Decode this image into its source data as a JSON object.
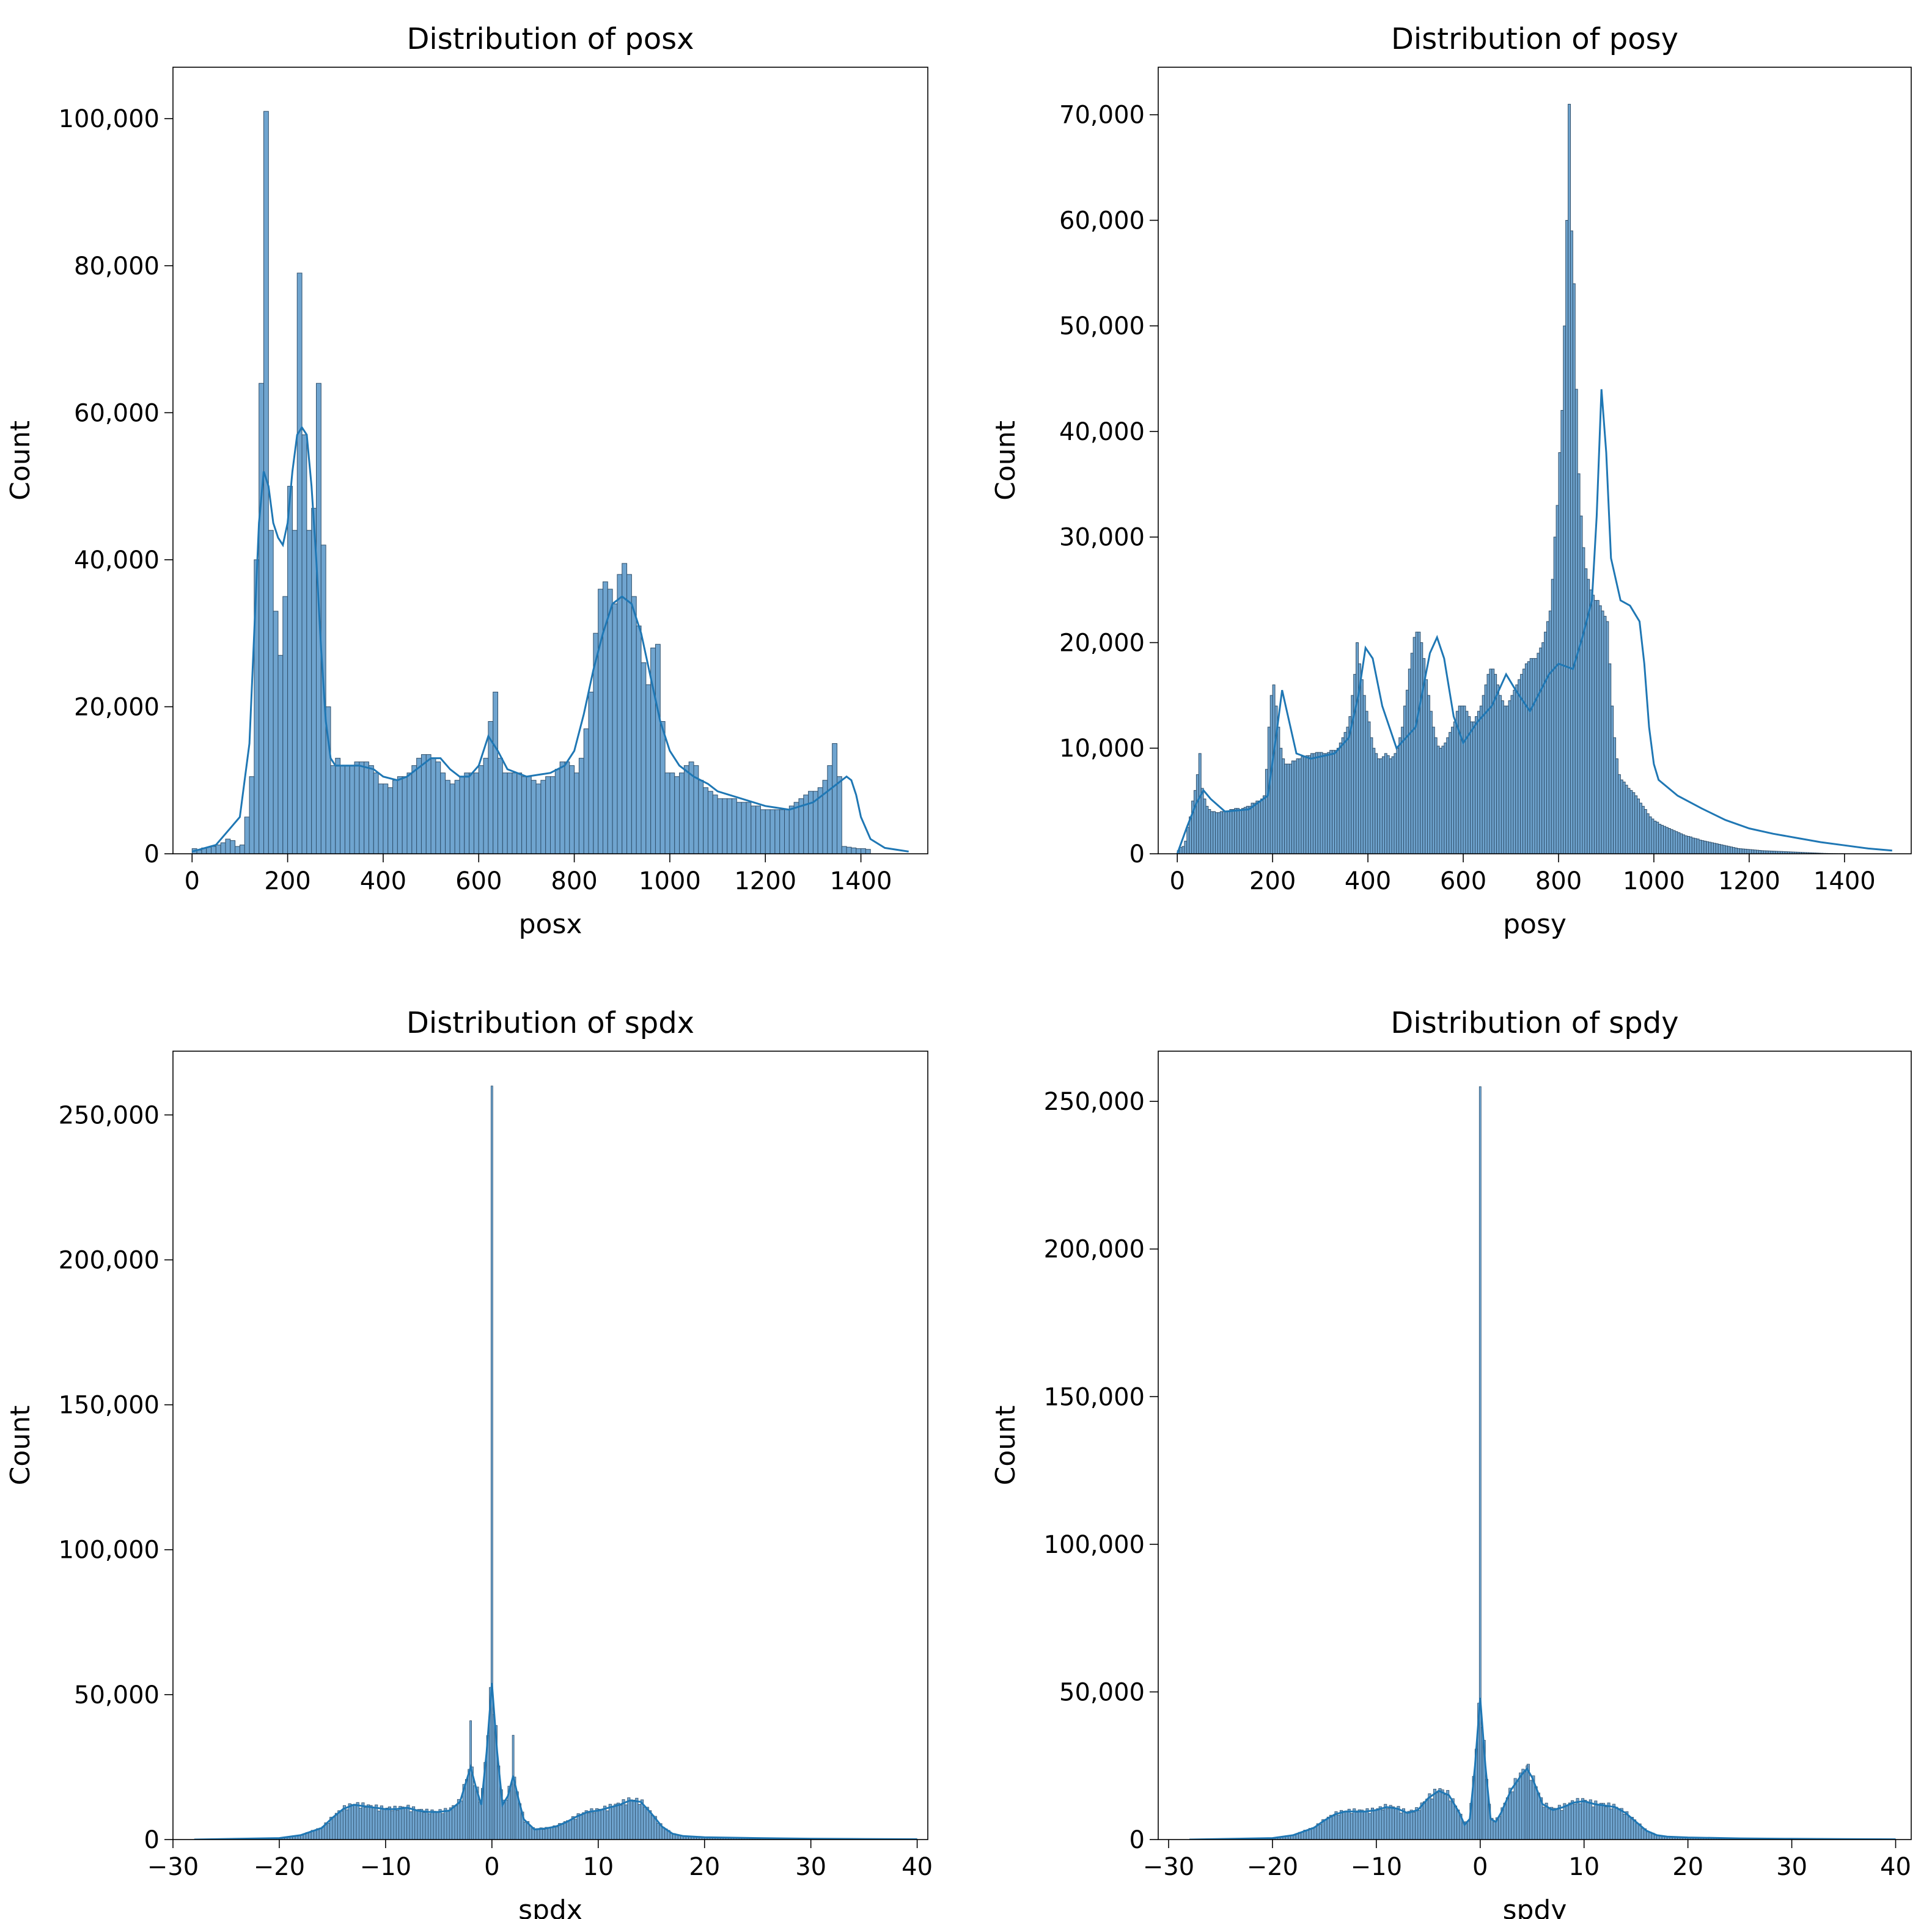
{
  "colors": {
    "bar_fill": "#6fa4cf",
    "bar_edge": "#2f4f6b",
    "kde_line": "#1f77b4",
    "axes": "#000000"
  },
  "chart_data": [
    {
      "type": "histogram",
      "title": "Distribution of posx",
      "xlabel": "posx",
      "ylabel": "Count",
      "xlim": [
        -40,
        1540
      ],
      "ylim": [
        0,
        107000
      ],
      "xticks": [
        0,
        200,
        400,
        600,
        800,
        1000,
        1200,
        1400
      ],
      "xtick_labels": [
        "0",
        "200",
        "400",
        "600",
        "800",
        "1000",
        "1200",
        "1400"
      ],
      "yticks": [
        0,
        20000,
        40000,
        60000,
        80000,
        100000
      ],
      "ytick_labels": [
        "0",
        "20,000",
        "40,000",
        "60,000",
        "80,000",
        "100,000"
      ],
      "bins": {
        "start": 0,
        "width": 10,
        "counts": [
          700,
          500,
          800,
          900,
          1000,
          1200,
          1500,
          2000,
          1800,
          1000,
          1200,
          5000,
          10500,
          40000,
          64000,
          101000,
          44000,
          33000,
          27000,
          35000,
          50000,
          44000,
          79000,
          57000,
          44000,
          47000,
          64000,
          42000,
          20000,
          12000,
          13000,
          12000,
          12000,
          12000,
          12500,
          12500,
          12500,
          12000,
          11000,
          9500,
          9500,
          9000,
          10000,
          10500,
          10500,
          11000,
          12000,
          13000,
          13500,
          13500,
          13000,
          12500,
          11000,
          10000,
          9500,
          10000,
          10500,
          11000,
          11000,
          11000,
          12000,
          13000,
          18000,
          22000,
          13000,
          11000,
          11000,
          11000,
          11000,
          10500,
          10500,
          10000,
          9500,
          10000,
          10500,
          10500,
          11500,
          12500,
          12500,
          12000,
          11000,
          13000,
          17000,
          22000,
          30000,
          36000,
          37000,
          36000,
          34000,
          38000,
          39500,
          38000,
          35000,
          31000,
          26000,
          23000,
          28000,
          28500,
          18000,
          11000,
          11000,
          10500,
          11000,
          12000,
          12500,
          12000,
          10000,
          9000,
          8500,
          8000,
          7500,
          7500,
          7500,
          7500,
          7000,
          7000,
          7000,
          6500,
          6500,
          6000,
          6000,
          6000,
          6000,
          6000,
          6000,
          6500,
          7000,
          7500,
          8000,
          8500,
          8500,
          9000,
          10000,
          12000,
          15000,
          10500,
          1000,
          900,
          800,
          700,
          700,
          600
        ]
      },
      "kde": {
        "x": [
          0,
          50,
          100,
          120,
          130,
          140,
          150,
          160,
          170,
          180,
          190,
          200,
          210,
          220,
          230,
          240,
          250,
          260,
          270,
          280,
          290,
          300,
          330,
          350,
          380,
          400,
          430,
          450,
          480,
          500,
          520,
          540,
          560,
          580,
          600,
          620,
          640,
          660,
          700,
          750,
          780,
          800,
          820,
          840,
          860,
          880,
          900,
          920,
          940,
          960,
          980,
          1000,
          1020,
          1050,
          1080,
          1100,
          1150,
          1200,
          1250,
          1300,
          1330,
          1350,
          1370,
          1380,
          1390,
          1400,
          1420,
          1450,
          1500
        ],
        "y": [
          300,
          1200,
          5000,
          15000,
          30000,
          45000,
          52000,
          50000,
          45000,
          43000,
          42000,
          45000,
          52000,
          57000,
          58000,
          57000,
          50000,
          40000,
          28000,
          18000,
          13000,
          12000,
          12000,
          12000,
          11500,
          10500,
          10000,
          10500,
          12000,
          13000,
          13000,
          11500,
          10500,
          10500,
          12000,
          16000,
          14000,
          11500,
          10500,
          11000,
          12000,
          14000,
          19000,
          25000,
          30000,
          34000,
          35000,
          34000,
          30000,
          24000,
          18000,
          14000,
          12000,
          10500,
          9500,
          8500,
          7500,
          6500,
          6000,
          7000,
          8500,
          9500,
          10500,
          10000,
          8000,
          5000,
          2000,
          800,
          300
        ]
      }
    },
    {
      "type": "histogram",
      "title": "Distribution of posy",
      "xlabel": "posy",
      "ylabel": "Count",
      "xlim": [
        -40,
        1540
      ],
      "ylim": [
        0,
        74500
      ],
      "xticks": [
        0,
        200,
        400,
        600,
        800,
        1000,
        1200,
        1400
      ],
      "xtick_labels": [
        "0",
        "200",
        "400",
        "600",
        "800",
        "1000",
        "1200",
        "1400"
      ],
      "yticks": [
        0,
        10000,
        20000,
        30000,
        40000,
        50000,
        60000,
        70000
      ],
      "ytick_labels": [
        "0",
        "10,000",
        "20,000",
        "30,000",
        "40,000",
        "50,000",
        "60,000",
        "70,000"
      ],
      "bins": {
        "start": 0,
        "width": 5,
        "counts": [
          300,
          600,
          700,
          1200,
          2500,
          3500,
          5000,
          6000,
          7500,
          9500,
          6200,
          5200,
          4500,
          4200,
          4000,
          4000,
          3900,
          3900,
          4000,
          4000,
          4000,
          4000,
          4200,
          4200,
          4300,
          4300,
          4200,
          4300,
          4400,
          4500,
          4500,
          4800,
          4800,
          5000,
          5000,
          5200,
          5500,
          8000,
          12000,
          15000,
          16000,
          14000,
          12000,
          10000,
          9000,
          8500,
          8500,
          8500,
          8800,
          8800,
          9000,
          9000,
          9200,
          9200,
          9300,
          9300,
          9500,
          9500,
          9600,
          9600,
          9600,
          9500,
          9500,
          9600,
          9800,
          9800,
          9800,
          10000,
          10500,
          11000,
          11500,
          12000,
          13000,
          15000,
          17000,
          20000,
          18000,
          16500,
          15000,
          13500,
          12500,
          11000,
          10000,
          9500,
          9000,
          9000,
          9200,
          9500,
          9300,
          9000,
          9200,
          9500,
          10000,
          11000,
          12000,
          14000,
          15500,
          17500,
          19000,
          20500,
          21000,
          21000,
          20000,
          18500,
          16500,
          15000,
          13500,
          12000,
          11000,
          10200,
          10000,
          10200,
          10500,
          11000,
          11500,
          12000,
          12500,
          13500,
          14000,
          14000,
          14000,
          13500,
          13000,
          12500,
          12500,
          13000,
          13500,
          14000,
          15000,
          16000,
          17000,
          17500,
          17500,
          17000,
          16000,
          15000,
          14500,
          14000,
          14000,
          14500,
          15000,
          15500,
          16000,
          16500,
          17000,
          17500,
          18000,
          18200,
          18500,
          18500,
          18500,
          19000,
          19500,
          20000,
          21000,
          22000,
          23000,
          26000,
          30000,
          33000,
          38000,
          42000,
          50000,
          60000,
          71000,
          59000,
          54000,
          44000,
          36000,
          32000,
          29000,
          27000,
          26000,
          25000,
          24500,
          24000,
          24000,
          23500,
          23000,
          22500,
          22000,
          18000,
          14000,
          11000,
          9000,
          7500,
          7000,
          6800,
          6500,
          6200,
          6000,
          5800,
          5500,
          5200,
          4800,
          4500,
          4200,
          3800,
          3500,
          3300,
          3100,
          3000,
          2800,
          2700,
          2600,
          2500,
          2400,
          2300,
          2200,
          2100,
          2000,
          1900,
          1800,
          1700,
          1650,
          1600,
          1500,
          1450,
          1400,
          1300,
          1250,
          1200,
          1150,
          1100,
          1050,
          1000,
          950,
          900,
          850,
          800,
          750,
          700,
          650,
          600,
          550,
          500,
          480,
          460,
          440,
          420,
          400,
          380,
          360,
          340,
          320,
          300,
          290,
          280,
          270,
          260,
          250,
          240,
          230,
          220,
          210,
          200,
          190,
          180,
          170,
          160,
          150,
          140,
          130,
          120,
          110,
          100,
          90,
          80,
          70,
          60,
          50,
          40,
          35,
          30,
          25,
          20,
          15,
          10,
          10,
          10
        ]
      },
      "kde": {
        "x": [
          0,
          20,
          40,
          55,
          70,
          100,
          150,
          190,
          210,
          220,
          230,
          250,
          280,
          330,
          360,
          380,
          395,
          410,
          430,
          460,
          500,
          530,
          545,
          560,
          580,
          600,
          630,
          660,
          690,
          710,
          740,
          780,
          800,
          830,
          850,
          870,
          880,
          890,
          900,
          910,
          930,
          950,
          970,
          980,
          990,
          1000,
          1010,
          1050,
          1100,
          1150,
          1200,
          1250,
          1300,
          1350,
          1400,
          1450,
          1500
        ],
        "y": [
          0,
          2500,
          4800,
          6000,
          5200,
          4000,
          4200,
          5500,
          12000,
          15500,
          13500,
          9500,
          9000,
          9500,
          11000,
          15000,
          19500,
          18500,
          14000,
          10000,
          12000,
          19000,
          20500,
          18500,
          13000,
          10500,
          12500,
          14000,
          17000,
          15500,
          13500,
          17000,
          18000,
          17500,
          20500,
          24000,
          32000,
          44000,
          38000,
          28000,
          24000,
          23500,
          22000,
          18000,
          12000,
          8500,
          7000,
          5500,
          4300,
          3200,
          2400,
          1900,
          1500,
          1100,
          800,
          500,
          300
        ]
      }
    },
    {
      "type": "histogram",
      "title": "Distribution of spdx",
      "xlabel": "spdx",
      "ylabel": "Count",
      "xlim": [
        -30,
        41
      ],
      "ylim": [
        0,
        272000
      ],
      "xticks": [
        -30,
        -20,
        -10,
        0,
        10,
        20,
        30,
        40
      ],
      "xtick_labels": [
        "−30",
        "−20",
        "−10",
        "0",
        "10",
        "20",
        "30",
        "40"
      ],
      "yticks": [
        0,
        50000,
        100000,
        150000,
        200000,
        250000
      ],
      "ytick_labels": [
        "0",
        "50,000",
        "100,000",
        "150,000",
        "200,000",
        "250,000"
      ],
      "spikes": [
        {
          "x": 0,
          "count": 260000
        },
        {
          "x": -2,
          "count": 41000
        },
        {
          "x": 2,
          "count": 36000
        }
      ],
      "kde": {
        "x": [
          -28,
          -20,
          -18,
          -16,
          -15,
          -14,
          -13,
          -12,
          -11,
          -10,
          -9,
          -8,
          -7,
          -6,
          -5,
          -4,
          -3,
          -2.5,
          -2,
          -1.5,
          -1,
          -0.5,
          0,
          0.5,
          1,
          1.5,
          2,
          2.5,
          3,
          4,
          5,
          6,
          7,
          8,
          9,
          10,
          11,
          12,
          13,
          14,
          15,
          16,
          17,
          18,
          20,
          25,
          30,
          35,
          40
        ],
        "y": [
          0,
          500,
          1500,
          4000,
          7500,
          10500,
          12000,
          11500,
          11000,
          10500,
          10500,
          11000,
          10000,
          9500,
          9500,
          10000,
          13000,
          19000,
          25000,
          18000,
          12000,
          30000,
          54000,
          30000,
          12000,
          15000,
          22000,
          14000,
          7000,
          3500,
          3800,
          4500,
          6000,
          8000,
          9500,
          10000,
          11000,
          12000,
          13500,
          13000,
          9000,
          4500,
          2000,
          1200,
          800,
          500,
          300,
          200,
          100
        ]
      }
    },
    {
      "type": "histogram",
      "title": "Distribution of spdy",
      "xlabel": "spdy",
      "ylabel": "Count",
      "xlim": [
        -31,
        41.5
      ],
      "ylim": [
        0,
        267000
      ],
      "xticks": [
        -30,
        -20,
        -10,
        0,
        10,
        20,
        30,
        40
      ],
      "xtick_labels": [
        "−30",
        "−20",
        "−10",
        "0",
        "10",
        "20",
        "30",
        "40"
      ],
      "yticks": [
        0,
        50000,
        100000,
        150000,
        200000,
        250000
      ],
      "ytick_labels": [
        "0",
        "50,000",
        "100,000",
        "150,000",
        "200,000",
        "250,000"
      ],
      "spikes": [
        {
          "x": 0,
          "count": 255000
        },
        {
          "x": 4.5,
          "count": 25000
        }
      ],
      "kde": {
        "x": [
          -28,
          -20,
          -18,
          -16,
          -15,
          -14,
          -13,
          -12,
          -11,
          -10,
          -9,
          -8,
          -7,
          -6,
          -5,
          -4,
          -3,
          -2,
          -1.5,
          -1,
          -0.5,
          0,
          0.5,
          1,
          1.5,
          2,
          3,
          4,
          4.5,
          5,
          6,
          7,
          8,
          9,
          10,
          11,
          12,
          13,
          14,
          15,
          16,
          17,
          18,
          20,
          25,
          30,
          35,
          40
        ],
        "y": [
          0,
          500,
          1500,
          4000,
          6500,
          8500,
          9500,
          9500,
          9500,
          10000,
          11000,
          10500,
          9000,
          10000,
          14000,
          16500,
          15000,
          9000,
          5000,
          7000,
          25000,
          48000,
          25000,
          7000,
          6000,
          9000,
          17000,
          22000,
          24000,
          21000,
          12000,
          10000,
          11000,
          12500,
          13000,
          12000,
          11500,
          11000,
          9000,
          6000,
          3000,
          1500,
          1000,
          700,
          400,
          250,
          150,
          80
        ]
      }
    }
  ]
}
